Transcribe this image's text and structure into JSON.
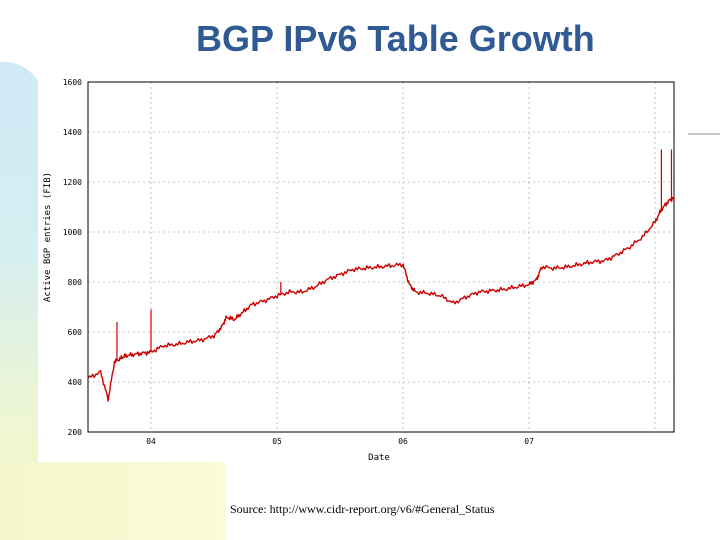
{
  "title": "BGP IPv6 Table Growth",
  "source": "Source: http://www.cidr-report.org/v6/#General_Status",
  "colors": {
    "title": "#2f5a93",
    "series": "#cc0000",
    "grid": "#c4c4c4",
    "axis": "#000000"
  },
  "chart_data": {
    "type": "line",
    "title": "",
    "xlabel": "Date",
    "ylabel": "Active BGP entries (FIB)",
    "ylim": [
      200,
      1600
    ],
    "yticks": [
      "1600",
      "1400",
      "1200",
      "1000",
      "800",
      "600",
      "400",
      "200"
    ],
    "xticks": [
      "04",
      "05",
      "06",
      "07"
    ],
    "xlim": [
      2003.5,
      2008.15
    ],
    "grid": true,
    "series": [
      {
        "name": "Active BGP entries (FIB)",
        "x": [
          2003.5,
          2003.6,
          2003.66,
          2003.71,
          2003.76,
          2003.8,
          2003.86,
          2003.93,
          2004.0,
          2004.1,
          2004.2,
          2004.3,
          2004.4,
          2004.5,
          2004.56,
          2004.6,
          2004.66,
          2004.72,
          2004.8,
          2004.9,
          2005.0,
          2005.1,
          2005.2,
          2005.3,
          2005.4,
          2005.5,
          2005.6,
          2005.7,
          2005.8,
          2005.9,
          2006.0,
          2006.05,
          2006.1,
          2006.2,
          2006.3,
          2006.4,
          2006.5,
          2006.6,
          2006.7,
          2006.8,
          2006.9,
          2007.0,
          2007.06,
          2007.1,
          2007.2,
          2007.3,
          2007.4,
          2007.5,
          2007.6,
          2007.7,
          2007.8,
          2007.9,
          2008.0,
          2008.05,
          2008.1,
          2008.15
        ],
        "y": [
          415,
          440,
          330,
          480,
          495,
          505,
          510,
          515,
          520,
          545,
          550,
          560,
          568,
          585,
          620,
          660,
          650,
          675,
          710,
          725,
          745,
          760,
          760,
          780,
          810,
          830,
          850,
          855,
          860,
          865,
          870,
          790,
          760,
          755,
          745,
          715,
          740,
          760,
          765,
          770,
          780,
          790,
          810,
          860,
          855,
          860,
          870,
          880,
          885,
          910,
          940,
          980,
          1040,
          1090,
          1120,
          1140
        ]
      }
    ],
    "spikes": [
      {
        "x": 2003.73,
        "y": 640
      },
      {
        "x": 2004.0,
        "y": 690
      },
      {
        "x": 2005.03,
        "y": 800
      },
      {
        "x": 2008.05,
        "y": 1330
      },
      {
        "x": 2008.13,
        "y": 1330
      }
    ]
  }
}
